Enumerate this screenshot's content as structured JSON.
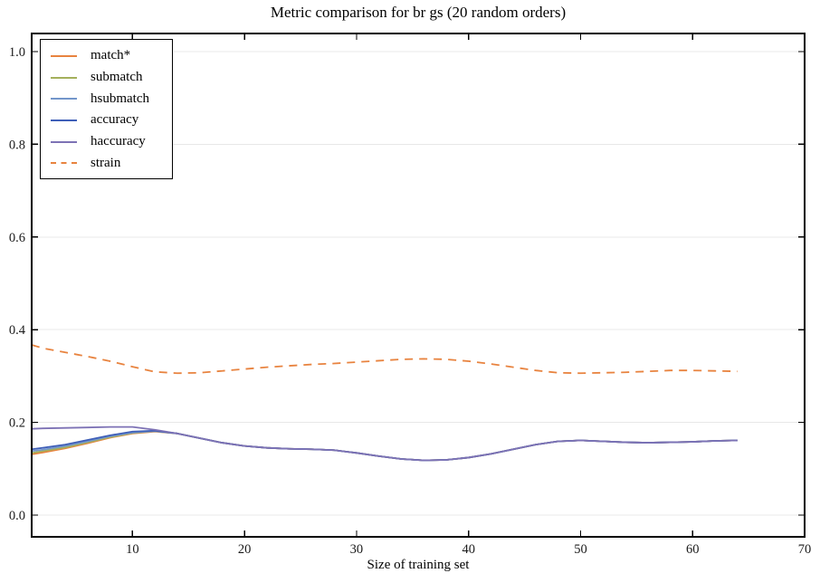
{
  "figure": {
    "title": "Metric comparison for br gs (20 random orders)",
    "xlabel": "Size of training set"
  },
  "chart_data": {
    "type": "line",
    "title": "Metric comparison for br gs (20 random orders)",
    "xlabel": "Size of training set",
    "ylabel": "",
    "grid": "horizontal-only",
    "legend_position": "upper-left",
    "xlim": [
      1,
      70
    ],
    "ylim": [
      -0.047,
      1.039
    ],
    "xticks": [
      10,
      20,
      30,
      40,
      50,
      60,
      70
    ],
    "xtick_labels": [
      "10",
      "20",
      "30",
      "40",
      "50",
      "60",
      "70"
    ],
    "yticks": [
      0.0,
      0.2,
      0.4,
      0.6,
      0.8,
      1.0
    ],
    "ytick_labels": [
      "0.0",
      "0.2",
      "0.4",
      "0.6",
      "0.8",
      "1.0"
    ],
    "x": [
      1,
      2,
      4,
      6,
      8,
      10,
      12,
      14,
      16,
      18,
      20,
      22,
      24,
      26,
      28,
      30,
      32,
      34,
      36,
      38,
      40,
      42,
      44,
      46,
      48,
      50,
      52,
      54,
      56,
      58,
      60,
      62,
      64
    ],
    "series": [
      {
        "name": "match*",
        "color": "#e8833f",
        "style": "solid",
        "values": [
          0.131,
          0.135,
          0.144,
          0.155,
          0.167,
          0.176,
          0.18,
          0.176,
          0.166,
          0.156,
          0.149,
          0.145,
          0.143,
          0.142,
          0.14,
          0.134,
          0.127,
          0.121,
          0.118,
          0.119,
          0.124,
          0.132,
          0.142,
          0.152,
          0.159,
          0.161,
          0.159,
          0.157,
          0.156,
          0.157,
          0.158,
          0.16,
          0.161
        ]
      },
      {
        "name": "submatch",
        "color": "#a4b05c",
        "style": "solid",
        "values": [
          0.134,
          0.138,
          0.146,
          0.157,
          0.168,
          0.177,
          0.181,
          0.176,
          0.166,
          0.156,
          0.149,
          0.145,
          0.143,
          0.142,
          0.14,
          0.134,
          0.127,
          0.121,
          0.118,
          0.119,
          0.124,
          0.132,
          0.142,
          0.152,
          0.159,
          0.161,
          0.159,
          0.157,
          0.156,
          0.157,
          0.158,
          0.16,
          0.161
        ]
      },
      {
        "name": "hsubmatch",
        "color": "#7396ca",
        "style": "solid",
        "values": [
          0.138,
          0.141,
          0.149,
          0.159,
          0.17,
          0.178,
          0.181,
          0.176,
          0.166,
          0.156,
          0.149,
          0.145,
          0.143,
          0.142,
          0.14,
          0.134,
          0.127,
          0.121,
          0.118,
          0.119,
          0.124,
          0.132,
          0.142,
          0.152,
          0.159,
          0.161,
          0.159,
          0.157,
          0.156,
          0.157,
          0.158,
          0.16,
          0.161
        ]
      },
      {
        "name": "accuracy",
        "color": "#3f5fb8",
        "style": "solid",
        "values": [
          0.142,
          0.145,
          0.152,
          0.162,
          0.172,
          0.18,
          0.182,
          0.176,
          0.166,
          0.156,
          0.149,
          0.145,
          0.143,
          0.142,
          0.14,
          0.134,
          0.127,
          0.121,
          0.118,
          0.119,
          0.124,
          0.132,
          0.142,
          0.152,
          0.159,
          0.161,
          0.159,
          0.157,
          0.156,
          0.157,
          0.158,
          0.16,
          0.161
        ]
      },
      {
        "name": "haccuracy",
        "color": "#7d72b5",
        "style": "solid",
        "values": [
          0.186,
          0.187,
          0.188,
          0.189,
          0.19,
          0.19,
          0.184,
          0.176,
          0.166,
          0.156,
          0.149,
          0.145,
          0.143,
          0.142,
          0.14,
          0.134,
          0.127,
          0.121,
          0.118,
          0.119,
          0.124,
          0.132,
          0.142,
          0.152,
          0.159,
          0.161,
          0.159,
          0.157,
          0.156,
          0.157,
          0.158,
          0.16,
          0.161
        ]
      },
      {
        "name": "strain",
        "color": "#e8833f",
        "style": "dashed",
        "values": [
          0.367,
          0.36,
          0.351,
          0.342,
          0.332,
          0.32,
          0.309,
          0.306,
          0.307,
          0.311,
          0.315,
          0.319,
          0.322,
          0.325,
          0.327,
          0.33,
          0.333,
          0.336,
          0.337,
          0.336,
          0.332,
          0.326,
          0.319,
          0.312,
          0.307,
          0.306,
          0.307,
          0.308,
          0.31,
          0.312,
          0.312,
          0.311,
          0.31
        ]
      }
    ],
    "colors": {
      "spine": "#000000",
      "grid": "#e8e8e8",
      "tick_label": "#1a1a1a"
    }
  }
}
